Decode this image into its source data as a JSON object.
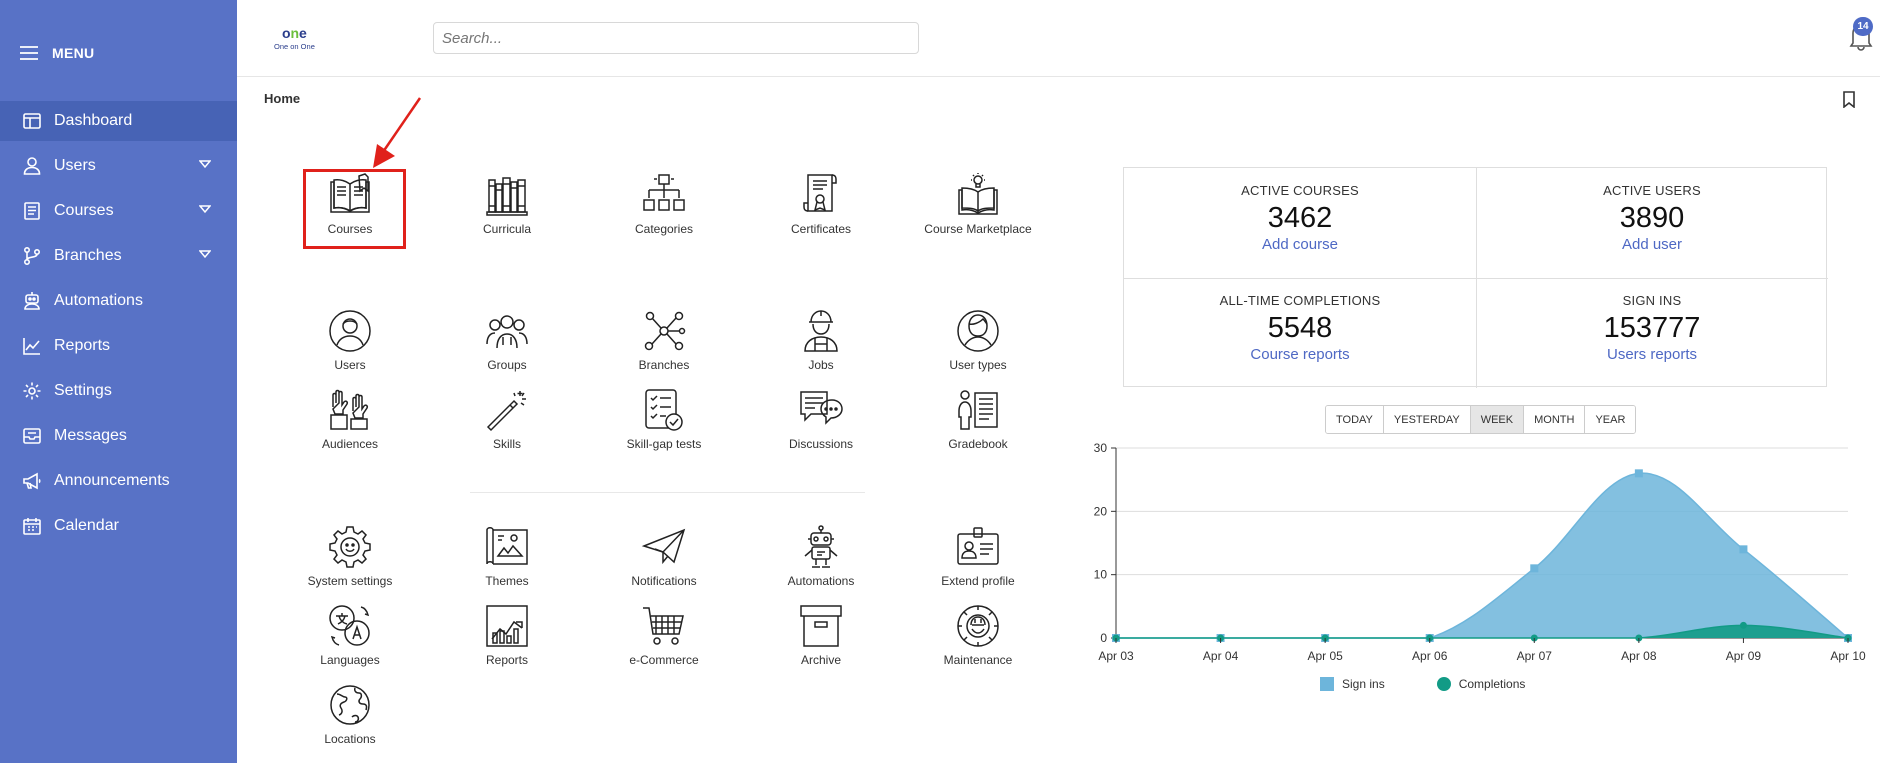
{
  "sidebar": {
    "menu_label": "MENU",
    "items": [
      {
        "label": "Dashboard",
        "icon": "dashboard-icon",
        "active": true,
        "caret": false
      },
      {
        "label": "Users",
        "icon": "user-icon",
        "active": false,
        "caret": true
      },
      {
        "label": "Courses",
        "icon": "course-icon",
        "active": false,
        "caret": true
      },
      {
        "label": "Branches",
        "icon": "branch-icon",
        "active": false,
        "caret": true
      },
      {
        "label": "Automations",
        "icon": "robot-icon",
        "active": false,
        "caret": false
      },
      {
        "label": "Reports",
        "icon": "chart-icon",
        "active": false,
        "caret": false
      },
      {
        "label": "Settings",
        "icon": "gear-icon",
        "active": false,
        "caret": false
      },
      {
        "label": "Messages",
        "icon": "inbox-icon",
        "active": false,
        "caret": false
      },
      {
        "label": "Announcements",
        "icon": "megaphone-icon",
        "active": false,
        "caret": false
      },
      {
        "label": "Calendar",
        "icon": "calendar-icon",
        "active": false,
        "caret": false
      }
    ]
  },
  "header": {
    "logo_text": "One on One",
    "search_placeholder": "Search...",
    "notification_count": "14"
  },
  "breadcrumb": "Home",
  "tiles": {
    "row1": [
      "Courses",
      "Curricula",
      "Categories",
      "Certificates",
      "Course Marketplace"
    ],
    "row2": [
      "Users",
      "Groups",
      "Branches",
      "Jobs",
      "User types"
    ],
    "row3": [
      "Audiences",
      "Skills",
      "Skill-gap tests",
      "Discussions",
      "Gradebook"
    ],
    "row4": [
      "System settings",
      "Themes",
      "Notifications",
      "Automations",
      "Extend profile"
    ],
    "row5": [
      "Languages",
      "Reports",
      "e-Commerce",
      "Archive",
      "Maintenance"
    ],
    "row6": [
      "Locations"
    ]
  },
  "stats": [
    {
      "title": "ACTIVE COURSES",
      "value": "3462",
      "link": "Add course"
    },
    {
      "title": "ACTIVE USERS",
      "value": "3890",
      "link": "Add user"
    },
    {
      "title": "ALL-TIME COMPLETIONS",
      "value": "5548",
      "link": "Course reports"
    },
    {
      "title": "SIGN INS",
      "value": "153777",
      "link": "Users reports"
    }
  ],
  "periods": {
    "options": [
      "TODAY",
      "YESTERDAY",
      "WEEK",
      "MONTH",
      "YEAR"
    ],
    "selected": "WEEK"
  },
  "chart_data": {
    "type": "area",
    "x": [
      "Apr 03",
      "Apr 04",
      "Apr 05",
      "Apr 06",
      "Apr 07",
      "Apr 08",
      "Apr 09",
      "Apr 10"
    ],
    "series": [
      {
        "name": "Sign ins",
        "values": [
          0,
          0,
          0,
          0,
          11,
          26,
          14,
          0
        ],
        "color": "#6db5db"
      },
      {
        "name": "Completions",
        "values": [
          0,
          0,
          0,
          0,
          0,
          0,
          2,
          0
        ],
        "color": "#129b86"
      }
    ],
    "yticks": [
      0,
      10,
      20,
      30
    ],
    "ylim": [
      0,
      30
    ],
    "grid": true,
    "legend": "bottom"
  },
  "colors": {
    "sidebar": "#5872c6",
    "accent": "#4e68c4",
    "highlight": "#e0211b"
  }
}
